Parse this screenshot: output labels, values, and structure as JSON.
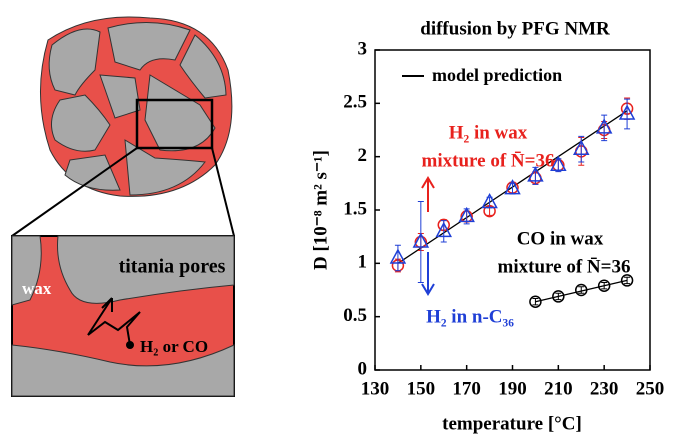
{
  "chart_data": {
    "type": "scatter",
    "title": "diffusion by PFG NMR",
    "x_label": "temperature [°C]",
    "y_label": "D [10⁻⁸ m² s⁻¹]",
    "xlim": [
      130,
      250
    ],
    "xticks": [
      130,
      150,
      170,
      190,
      210,
      230,
      250
    ],
    "ylim": [
      0,
      3
    ],
    "yticks": [
      0,
      0.5,
      1,
      1.5,
      2,
      2.5,
      3
    ],
    "legend": "top-right",
    "series": [
      {
        "name": "H₂ in wax",
        "note": "mixture of N̄=36",
        "color": "#e8211d",
        "marker": "circle",
        "x": [
          140,
          150,
          160,
          170,
          180,
          190,
          200,
          210,
          220,
          230,
          240
        ],
        "values": [
          0.98,
          1.2,
          1.36,
          1.44,
          1.49,
          1.71,
          1.8,
          1.92,
          2.05,
          2.25,
          2.45
        ],
        "errors": [
          0.06,
          0.08,
          0.05,
          0.05,
          0.04,
          0.05,
          0.06,
          0.05,
          0.13,
          0.08,
          0.1
        ]
      },
      {
        "name": "H₂ in n-C₃₆",
        "color": "#1f3fd6",
        "marker": "triangle",
        "x": [
          140,
          150,
          160,
          170,
          180,
          190,
          200,
          210,
          220,
          230,
          240
        ],
        "values": [
          1.05,
          1.2,
          1.3,
          1.44,
          1.57,
          1.7,
          1.82,
          1.92,
          2.07,
          2.27,
          2.4
        ],
        "errors": [
          0.12,
          0.38,
          0.1,
          0.07,
          0.05,
          0.05,
          0.08,
          0.06,
          0.12,
          0.12,
          0.14
        ]
      },
      {
        "name": "CO in wax",
        "note": "mixture of N̄=36",
        "color": "#000000",
        "marker": "circle",
        "x": [
          200,
          210,
          220,
          230,
          240
        ],
        "values": [
          0.64,
          0.69,
          0.75,
          0.79,
          0.84
        ],
        "errors": [
          0.03,
          0.03,
          0.03,
          0.03,
          0.03
        ]
      }
    ],
    "model": {
      "name": "model prediction",
      "color": "#000000",
      "lines": [
        {
          "x": [
            140,
            240
          ],
          "values": [
            1.0,
            2.43
          ]
        },
        {
          "x": [
            200,
            240
          ],
          "values": [
            0.64,
            0.84
          ]
        }
      ]
    }
  },
  "schematic": {
    "labels": [
      "titania pores",
      "wax",
      "H₂ or CO"
    ]
  }
}
